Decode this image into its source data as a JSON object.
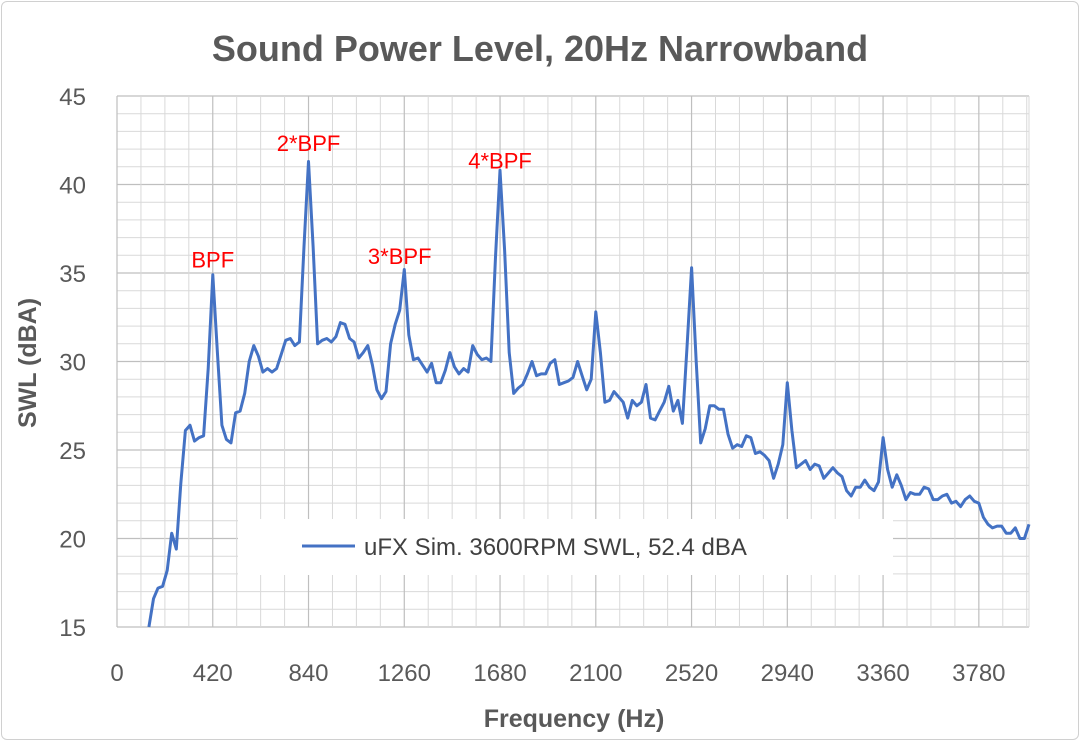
{
  "chart_data": {
    "type": "line",
    "title": "Sound Power Level, 20Hz Narrowband",
    "xlabel": "Frequency (Hz)",
    "ylabel": "SWL (dBA)",
    "xlim": [
      0,
      4000
    ],
    "ylim": [
      15,
      45
    ],
    "xticks": [
      0,
      420,
      840,
      1260,
      1680,
      2100,
      2520,
      2940,
      3360,
      3780
    ],
    "yticks": [
      15,
      20,
      25,
      30,
      35,
      40,
      45
    ],
    "grid": true,
    "legend": "lower-center",
    "series_color": "#4472C4",
    "annotation_color": "#FF0000",
    "series": [
      {
        "name": "uFX Sim. 3600RPM SWL, 52.4 dBA",
        "x": [
          140,
          160,
          180,
          200,
          220,
          240,
          260,
          280,
          300,
          320,
          340,
          360,
          380,
          400,
          420,
          440,
          460,
          480,
          500,
          520,
          540,
          560,
          580,
          600,
          620,
          640,
          660,
          680,
          700,
          720,
          740,
          760,
          780,
          800,
          820,
          840,
          860,
          880,
          900,
          920,
          940,
          960,
          980,
          1000,
          1020,
          1040,
          1060,
          1080,
          1100,
          1120,
          1140,
          1160,
          1180,
          1200,
          1220,
          1240,
          1260,
          1280,
          1300,
          1320,
          1340,
          1360,
          1380,
          1400,
          1420,
          1440,
          1460,
          1480,
          1500,
          1520,
          1540,
          1560,
          1580,
          1600,
          1620,
          1640,
          1660,
          1680,
          1700,
          1720,
          1740,
          1760,
          1780,
          1800,
          1820,
          1840,
          1860,
          1880,
          1900,
          1920,
          1940,
          1960,
          1980,
          2000,
          2020,
          2040,
          2060,
          2080,
          2100,
          2120,
          2140,
          2160,
          2180,
          2200,
          2220,
          2240,
          2260,
          2280,
          2300,
          2320,
          2340,
          2360,
          2380,
          2400,
          2420,
          2440,
          2460,
          2480,
          2500,
          2520,
          2540,
          2560,
          2580,
          2600,
          2620,
          2640,
          2660,
          2680,
          2700,
          2720,
          2740,
          2760,
          2780,
          2800,
          2820,
          2840,
          2860,
          2880,
          2900,
          2920,
          2940,
          2960,
          2980,
          3000,
          3020,
          3040,
          3060,
          3080,
          3100,
          3120,
          3140,
          3160,
          3180,
          3200,
          3220,
          3240,
          3260,
          3280,
          3300,
          3320,
          3340,
          3360,
          3380,
          3400,
          3420,
          3440,
          3460,
          3480,
          3500,
          3520,
          3540,
          3560,
          3580,
          3600,
          3620,
          3640,
          3660,
          3680,
          3700,
          3720,
          3740,
          3760,
          3780,
          3800,
          3820,
          3840,
          3860,
          3880,
          3900,
          3920,
          3940,
          3960,
          3980,
          4000
        ],
        "values": [
          15.0,
          16.6,
          17.2,
          17.3,
          18.2,
          20.3,
          19.4,
          23.1,
          26.1,
          26.4,
          25.5,
          25.7,
          25.8,
          29.6,
          34.9,
          30.6,
          26.4,
          25.6,
          25.4,
          27.1,
          27.2,
          28.2,
          30.0,
          30.9,
          30.3,
          29.4,
          29.6,
          29.4,
          29.6,
          30.4,
          31.2,
          31.3,
          30.9,
          31.1,
          36.5,
          41.3,
          36.5,
          31.0,
          31.2,
          31.3,
          31.1,
          31.4,
          32.2,
          32.1,
          31.3,
          31.1,
          30.2,
          30.5,
          30.9,
          29.8,
          28.4,
          27.9,
          28.3,
          31.0,
          32.1,
          32.9,
          35.2,
          31.5,
          30.1,
          30.2,
          29.8,
          29.4,
          29.9,
          28.8,
          28.8,
          29.5,
          30.5,
          29.7,
          29.3,
          29.6,
          29.4,
          30.9,
          30.4,
          30.1,
          30.2,
          30.0,
          35.9,
          40.8,
          36.3,
          30.5,
          28.2,
          28.5,
          28.7,
          29.3,
          30.0,
          29.2,
          29.3,
          29.3,
          29.9,
          30.1,
          28.7,
          28.8,
          28.9,
          29.1,
          30.0,
          29.2,
          28.4,
          29.0,
          32.8,
          30.5,
          27.7,
          27.8,
          28.3,
          28.0,
          27.7,
          26.8,
          27.8,
          27.5,
          27.7,
          28.7,
          26.8,
          26.7,
          27.2,
          27.7,
          28.6,
          27.2,
          27.8,
          26.5,
          30.8,
          35.3,
          30.1,
          25.4,
          26.2,
          27.5,
          27.5,
          27.3,
          27.3,
          25.9,
          25.1,
          25.3,
          25.2,
          25.8,
          25.7,
          24.8,
          24.9,
          24.7,
          24.4,
          23.4,
          24.2,
          25.3,
          28.8,
          26.1,
          24.0,
          24.2,
          24.4,
          23.9,
          24.2,
          24.1,
          23.4,
          23.7,
          24.0,
          23.7,
          23.5,
          22.7,
          22.4,
          22.9,
          22.9,
          23.3,
          22.9,
          22.7,
          23.2,
          25.7,
          23.9,
          22.9,
          23.6,
          23.0,
          22.2,
          22.6,
          22.5,
          22.5,
          22.9,
          22.8,
          22.2,
          22.2,
          22.4,
          22.5,
          22.0,
          22.1,
          21.8,
          22.2,
          22.4,
          22.1,
          22.0,
          21.2,
          20.8,
          20.6,
          20.7,
          20.7,
          20.3,
          20.3,
          20.6,
          20.0,
          20.0,
          20.8
        ]
      }
    ],
    "annotations": [
      {
        "text": "BPF",
        "x": 420,
        "y": 35.3
      },
      {
        "text": "2*BPF",
        "x": 840,
        "y": 41.9
      },
      {
        "text": "3*BPF",
        "x": 1240,
        "y": 35.5
      },
      {
        "text": "4*BPF",
        "x": 1680,
        "y": 40.9
      }
    ]
  }
}
